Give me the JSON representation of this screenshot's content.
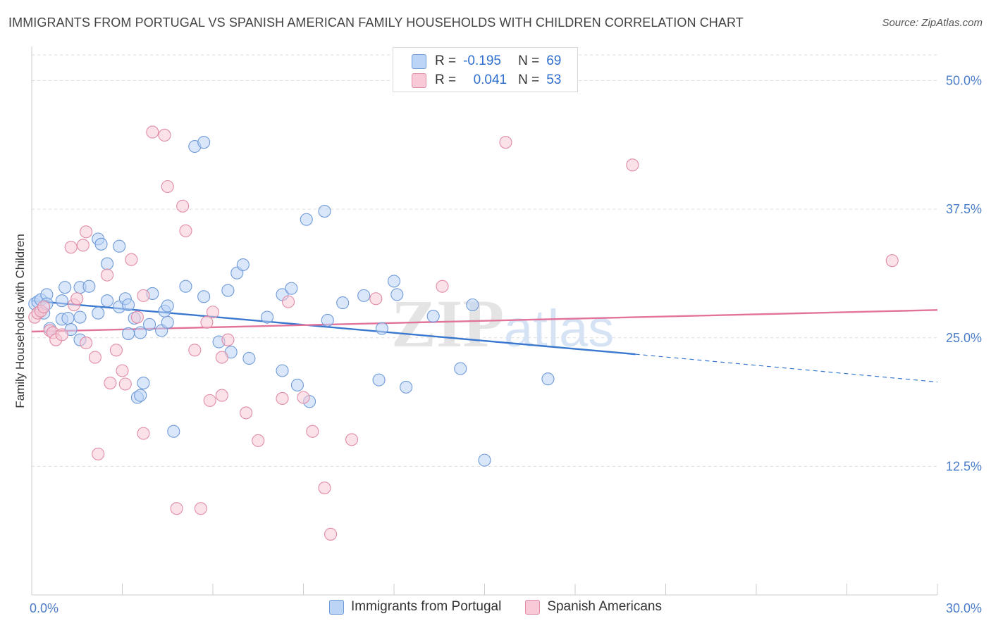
{
  "title": "IMMIGRANTS FROM PORTUGAL VS SPANISH AMERICAN FAMILY HOUSEHOLDS WITH CHILDREN CORRELATION CHART",
  "source": "Source: ZipAtlas.com",
  "watermark": {
    "zip": "ZIP",
    "atlas": "atlas"
  },
  "stats": {
    "r_label": "R =",
    "n_label": "N =",
    "blue": {
      "r": "-0.195",
      "n": "69"
    },
    "pink": {
      "r": "0.041",
      "n": "53"
    }
  },
  "legend": {
    "blue_label": "Immigrants from Portugal",
    "pink_label": "Spanish Americans"
  },
  "colors": {
    "blue_fill": "#bcd4f5",
    "blue_stroke": "#6f9ad8",
    "blue_line": "#3a78d0",
    "pink_fill": "#f8c9d6",
    "pink_stroke": "#e08ca6",
    "pink_line": "#e2739a",
    "tick_label": "#4a7cc8"
  },
  "chart_data": {
    "type": "scatter",
    "title": "IMMIGRANTS FROM PORTUGAL VS SPANISH AMERICAN FAMILY HOUSEHOLDS WITH CHILDREN CORRELATION CHART",
    "xlabel": "",
    "ylabel": "Family Households with Children",
    "xlim": [
      0,
      30
    ],
    "ylim": [
      0,
      52.5
    ],
    "x_tick_labels": [
      "0.0%",
      "30.0%"
    ],
    "y_ticks": [
      12.5,
      25.0,
      37.5,
      50.0
    ],
    "y_tick_labels": [
      "12.5%",
      "25.0%",
      "37.5%",
      "50.0%"
    ],
    "series": [
      {
        "name": "Immigrants from Portugal",
        "color": "blue",
        "trend": {
          "x0": 0.0,
          "y0": 28.6,
          "x1": 20.0,
          "y1": 23.4,
          "dashed_to_x": 30.0,
          "dashed_to_y": 20.7
        },
        "points": [
          [
            0.1,
            28.3
          ],
          [
            0.2,
            28.5
          ],
          [
            0.3,
            28.7
          ],
          [
            0.4,
            27.4
          ],
          [
            0.5,
            29.2
          ],
          [
            0.5,
            28.3
          ],
          [
            0.6,
            25.9
          ],
          [
            1.0,
            28.6
          ],
          [
            1.0,
            26.8
          ],
          [
            1.1,
            29.9
          ],
          [
            1.2,
            26.9
          ],
          [
            1.3,
            25.8
          ],
          [
            1.6,
            29.9
          ],
          [
            1.6,
            24.8
          ],
          [
            1.6,
            27.0
          ],
          [
            1.9,
            30.0
          ],
          [
            2.2,
            34.6
          ],
          [
            2.3,
            34.1
          ],
          [
            2.2,
            27.4
          ],
          [
            2.5,
            28.6
          ],
          [
            2.5,
            32.2
          ],
          [
            2.9,
            33.9
          ],
          [
            2.9,
            28.0
          ],
          [
            3.1,
            28.8
          ],
          [
            3.2,
            28.2
          ],
          [
            3.2,
            25.4
          ],
          [
            3.4,
            26.9
          ],
          [
            3.5,
            19.2
          ],
          [
            3.6,
            19.4
          ],
          [
            3.6,
            25.5
          ],
          [
            3.7,
            20.6
          ],
          [
            3.9,
            26.3
          ],
          [
            4.0,
            29.3
          ],
          [
            4.3,
            25.7
          ],
          [
            4.4,
            27.6
          ],
          [
            4.5,
            26.5
          ],
          [
            4.5,
            28.1
          ],
          [
            4.7,
            15.9
          ],
          [
            5.1,
            30.0
          ],
          [
            5.4,
            43.6
          ],
          [
            5.7,
            44.0
          ],
          [
            5.7,
            29.0
          ],
          [
            6.2,
            24.6
          ],
          [
            6.6,
            23.6
          ],
          [
            6.5,
            29.6
          ],
          [
            6.8,
            31.3
          ],
          [
            7.0,
            32.1
          ],
          [
            7.2,
            23.0
          ],
          [
            7.8,
            27.0
          ],
          [
            8.3,
            29.2
          ],
          [
            8.3,
            21.8
          ],
          [
            8.6,
            29.8
          ],
          [
            8.8,
            20.4
          ],
          [
            9.1,
            36.5
          ],
          [
            9.2,
            18.8
          ],
          [
            9.7,
            37.3
          ],
          [
            9.8,
            26.7
          ],
          [
            10.3,
            28.4
          ],
          [
            11.0,
            29.1
          ],
          [
            11.5,
            20.9
          ],
          [
            11.6,
            25.9
          ],
          [
            12.0,
            30.5
          ],
          [
            12.1,
            29.2
          ],
          [
            12.4,
            20.2
          ],
          [
            13.3,
            27.1
          ],
          [
            14.2,
            22.0
          ],
          [
            14.6,
            28.2
          ],
          [
            15.0,
            13.1
          ],
          [
            17.1,
            21.0
          ]
        ]
      },
      {
        "name": "Spanish Americans",
        "color": "pink",
        "trend": {
          "x0": 0.0,
          "y0": 25.6,
          "x1": 30.0,
          "y1": 27.7
        },
        "points": [
          [
            0.1,
            27.0
          ],
          [
            0.2,
            27.4
          ],
          [
            0.3,
            27.6
          ],
          [
            0.4,
            28.0
          ],
          [
            0.6,
            25.7
          ],
          [
            0.7,
            25.5
          ],
          [
            0.8,
            24.8
          ],
          [
            1.0,
            25.3
          ],
          [
            1.3,
            33.8
          ],
          [
            1.4,
            28.2
          ],
          [
            1.5,
            28.8
          ],
          [
            1.7,
            34.0
          ],
          [
            1.8,
            35.3
          ],
          [
            1.8,
            24.5
          ],
          [
            2.1,
            23.1
          ],
          [
            2.2,
            13.7
          ],
          [
            2.5,
            31.1
          ],
          [
            2.6,
            20.6
          ],
          [
            2.8,
            23.8
          ],
          [
            3.0,
            21.8
          ],
          [
            3.1,
            20.5
          ],
          [
            3.3,
            32.6
          ],
          [
            3.5,
            27.0
          ],
          [
            3.7,
            29.1
          ],
          [
            3.7,
            15.7
          ],
          [
            4.0,
            45.0
          ],
          [
            4.4,
            44.7
          ],
          [
            4.5,
            39.7
          ],
          [
            4.8,
            8.4
          ],
          [
            5.0,
            37.8
          ],
          [
            5.1,
            35.4
          ],
          [
            5.4,
            23.8
          ],
          [
            5.6,
            8.4
          ],
          [
            5.8,
            26.5
          ],
          [
            5.9,
            18.9
          ],
          [
            6.0,
            27.5
          ],
          [
            6.3,
            19.4
          ],
          [
            6.3,
            23.1
          ],
          [
            6.5,
            24.8
          ],
          [
            7.1,
            17.7
          ],
          [
            7.5,
            15.0
          ],
          [
            8.3,
            19.1
          ],
          [
            8.5,
            28.5
          ],
          [
            9.0,
            19.2
          ],
          [
            9.3,
            15.9
          ],
          [
            9.7,
            10.4
          ],
          [
            9.9,
            5.9
          ],
          [
            10.6,
            15.1
          ],
          [
            11.4,
            28.8
          ],
          [
            13.6,
            30.0
          ],
          [
            15.7,
            44.0
          ],
          [
            19.9,
            41.8
          ],
          [
            28.5,
            32.5
          ]
        ]
      }
    ]
  }
}
